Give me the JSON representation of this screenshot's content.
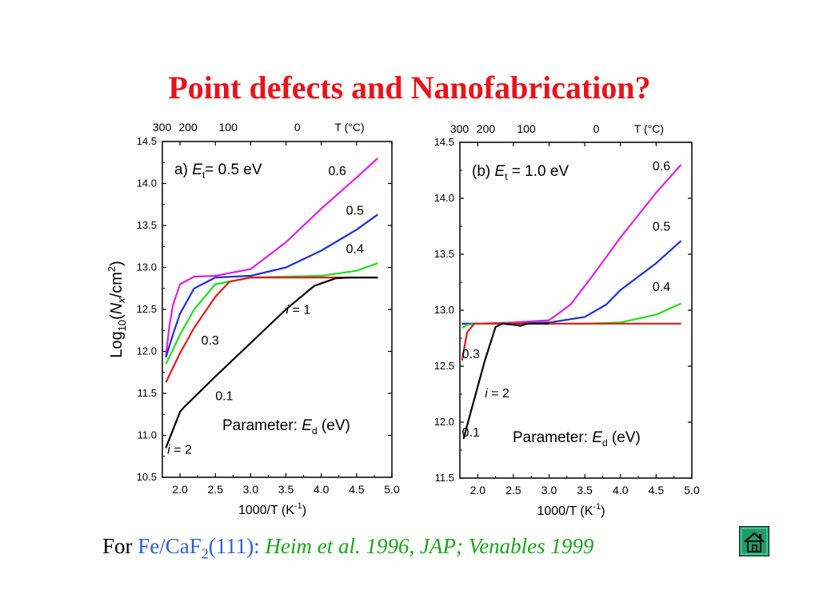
{
  "title": "Point defects and Nanofabrication?",
  "citation": {
    "prefix": "For",
    "material": "Fe/CaF",
    "material_sub": "2",
    "material_suffix": "(111):",
    "reference": "Heim et al. 1996, JAP; Venables 1999"
  },
  "home_icon": "home-icon",
  "chart_data": [
    {
      "type": "line",
      "panel_label": "a) E",
      "panel_label_sub": "t",
      "panel_label_tail": "= 0.5 eV",
      "xlabel": "1000/T (K",
      "xlabel_sup": "-1",
      "xlabel_tail": ")",
      "ylabel": "Log10(Nx/cm2)",
      "xlim": [
        1.75,
        5.0
      ],
      "ylim": [
        10.5,
        14.5
      ],
      "xticks": [
        "2.0",
        "2.5",
        "3.0",
        "3.5",
        "4.0",
        "4.5",
        "5.0"
      ],
      "yticks": [
        "10.5",
        "11.0",
        "11.5",
        "12.0",
        "12.5",
        "13.0",
        "13.5",
        "14.0",
        "14.5"
      ],
      "top_axis": {
        "ticks": [
          {
            "x": 1.745,
            "label": "300"
          },
          {
            "x": 2.114,
            "label": "200"
          },
          {
            "x": 2.681,
            "label": "100"
          },
          {
            "x": 3.661,
            "label": "0"
          }
        ],
        "unit_label": "T (°C)"
      },
      "parameter_label": "Parameter: E",
      "parameter_sub": "d",
      "parameter_tail": " (eV)",
      "annotations": [
        {
          "text": "0.6",
          "x": 4.1,
          "y": 14.1
        },
        {
          "text": "0.5",
          "x": 4.35,
          "y": 13.63
        },
        {
          "text": "0.4",
          "x": 4.35,
          "y": 13.17
        },
        {
          "text": "0.3",
          "x": 2.3,
          "y": 12.08
        },
        {
          "text": "0.1",
          "x": 2.5,
          "y": 11.42
        },
        {
          "text": "i = 1",
          "x": 3.5,
          "y": 12.45
        },
        {
          "text": "i = 2",
          "x": 1.82,
          "y": 10.78
        }
      ],
      "series": [
        {
          "label": "0.6",
          "color": "#e01ee0",
          "x": [
            1.8,
            1.85,
            1.9,
            2.0,
            2.2,
            2.5,
            3.0,
            3.5,
            4.0,
            4.5,
            4.8
          ],
          "y": [
            11.95,
            12.3,
            12.55,
            12.8,
            12.89,
            12.9,
            12.98,
            13.3,
            13.7,
            14.07,
            14.3
          ]
        },
        {
          "label": "0.5",
          "color": "#1c2fd6",
          "x": [
            1.8,
            1.9,
            2.0,
            2.2,
            2.5,
            3.0,
            3.5,
            4.0,
            4.5,
            4.8
          ],
          "y": [
            11.93,
            12.2,
            12.45,
            12.75,
            12.88,
            12.9,
            13.0,
            13.2,
            13.45,
            13.63
          ]
        },
        {
          "label": "0.4",
          "color": "#1be01b",
          "x": [
            1.8,
            1.9,
            2.0,
            2.2,
            2.5,
            3.0,
            3.5,
            4.0,
            4.5,
            4.8
          ],
          "y": [
            11.85,
            12.02,
            12.2,
            12.5,
            12.8,
            12.88,
            12.89,
            12.9,
            12.96,
            13.05
          ]
        },
        {
          "label": "0.3",
          "color": "#e01b1b",
          "x": [
            1.8,
            2.0,
            2.2,
            2.5,
            2.7,
            3.0,
            3.5,
            4.0,
            4.5,
            4.8
          ],
          "y": [
            11.63,
            11.98,
            12.28,
            12.65,
            12.83,
            12.88,
            12.88,
            12.88,
            12.88,
            12.88
          ]
        },
        {
          "label": "0.1",
          "color": "#000000",
          "x": [
            1.8,
            2.0,
            2.05,
            2.5,
            3.0,
            3.5,
            3.9,
            4.2,
            4.4,
            4.8
          ],
          "y": [
            10.85,
            11.28,
            11.33,
            11.7,
            12.1,
            12.5,
            12.78,
            12.87,
            12.88,
            12.88
          ]
        }
      ]
    },
    {
      "type": "line",
      "panel_label": "(b) E",
      "panel_label_sub": "t",
      "panel_label_tail": " = 1.0 eV",
      "xlabel": "1000/T (K",
      "xlabel_sup": "-1",
      "xlabel_tail": ")",
      "ylabel": "",
      "xlim": [
        1.75,
        5.0
      ],
      "ylim": [
        11.5,
        14.5
      ],
      "xticks": [
        "2.0",
        "2.5",
        "3.0",
        "3.5",
        "4.0",
        "4.5",
        "5.0"
      ],
      "yticks": [
        "11.5",
        "12.0",
        "12.5",
        "13.0",
        "13.5",
        "14.0",
        "14.5"
      ],
      "top_axis": {
        "ticks": [
          {
            "x": 1.745,
            "label": "300"
          },
          {
            "x": 2.114,
            "label": "200"
          },
          {
            "x": 2.681,
            "label": "100"
          },
          {
            "x": 3.661,
            "label": "0"
          }
        ],
        "unit_label": "T (°C)"
      },
      "parameter_label": "Parameter: E",
      "parameter_sub": "d",
      "parameter_tail": " (eV)",
      "annotations": [
        {
          "text": "0.6",
          "x": 4.45,
          "y": 14.25
        },
        {
          "text": "0.5",
          "x": 4.45,
          "y": 13.71
        },
        {
          "text": "0.4",
          "x": 4.45,
          "y": 13.17
        },
        {
          "text": "0.3",
          "x": 1.78,
          "y": 12.57
        },
        {
          "text": "0.1",
          "x": 1.78,
          "y": 11.87
        },
        {
          "text": "i = 2",
          "x": 2.1,
          "y": 12.22
        }
      ],
      "series": [
        {
          "label": "0.6",
          "color": "#e01ee0",
          "x": [
            1.78,
            2.0,
            2.5,
            3.0,
            3.3,
            3.6,
            4.0,
            4.5,
            4.85
          ],
          "y": [
            12.88,
            12.88,
            12.89,
            12.91,
            13.05,
            13.3,
            13.65,
            14.05,
            14.3
          ]
        },
        {
          "label": "0.5",
          "color": "#1c2fd6",
          "x": [
            1.78,
            2.0,
            2.5,
            3.0,
            3.5,
            3.8,
            4.0,
            4.5,
            4.85
          ],
          "y": [
            12.88,
            12.88,
            12.88,
            12.89,
            12.94,
            13.05,
            13.18,
            13.42,
            13.62
          ]
        },
        {
          "label": "0.4",
          "color": "#1be01b",
          "x": [
            1.78,
            1.85,
            2.0,
            2.5,
            3.0,
            3.5,
            4.0,
            4.5,
            4.85
          ],
          "y": [
            12.84,
            12.87,
            12.88,
            12.88,
            12.88,
            12.88,
            12.89,
            12.96,
            13.06
          ]
        },
        {
          "label": "0.3",
          "color": "#e01b1b",
          "x": [
            1.78,
            1.85,
            1.95,
            2.0,
            2.5,
            3.0,
            4.0,
            4.85
          ],
          "y": [
            12.55,
            12.8,
            12.88,
            12.88,
            12.88,
            12.88,
            12.88,
            12.88
          ]
        },
        {
          "label": "0.1",
          "color": "#000000",
          "x": [
            1.8,
            1.95,
            2.1,
            2.25,
            2.35,
            2.5,
            2.6,
            2.7,
            3.0
          ],
          "y": [
            11.85,
            12.2,
            12.55,
            12.85,
            12.88,
            12.87,
            12.86,
            12.88,
            12.88
          ]
        }
      ]
    }
  ]
}
